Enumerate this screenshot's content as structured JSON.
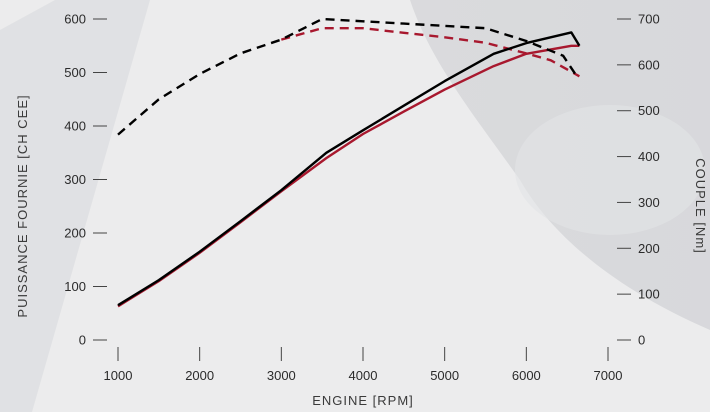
{
  "colors": {
    "background": "#ececed",
    "accent": "#a8182e",
    "primary": "#000000",
    "axis": "#444444",
    "text": "#2b2b2b"
  },
  "chart_data": {
    "type": "line",
    "title": "",
    "xlabel": "ENGINE [RPM]",
    "ylabel_left": "PUISSANCE FOURNIE [CH CEE]",
    "ylabel_right": "COUPLE [Nm]",
    "xlim": [
      1000,
      7000
    ],
    "ylim_left": [
      0,
      600
    ],
    "ylim_right": [
      0,
      700
    ],
    "x_ticks": [
      "1000",
      "2000",
      "3000",
      "4000",
      "5000",
      "6000",
      "7000"
    ],
    "y_left_ticks": [
      "0",
      "100",
      "200",
      "300",
      "400",
      "500",
      "600"
    ],
    "y_right_ticks": [
      "0",
      "100",
      "200",
      "300",
      "400",
      "500",
      "600",
      "700"
    ],
    "grid": false,
    "legend": "none",
    "series": [
      {
        "axis": "left",
        "style": "solid",
        "color": "#000000",
        "x": [
          1000,
          1500,
          2000,
          2500,
          3000,
          3550,
          4000,
          4500,
          5000,
          5600,
          6000,
          6550,
          6650
        ],
        "y": [
          65,
          112,
          165,
          222,
          280,
          350,
          392,
          438,
          484,
          535,
          555,
          575,
          550
        ]
      },
      {
        "axis": "left",
        "style": "solid",
        "color": "#a8182e",
        "x": [
          1000,
          1500,
          2000,
          2500,
          3000,
          3550,
          4000,
          4500,
          5000,
          5600,
          6000,
          6550,
          6650
        ],
        "y": [
          63,
          110,
          163,
          220,
          278,
          340,
          385,
          427,
          468,
          512,
          535,
          550,
          550
        ]
      },
      {
        "axis": "right",
        "style": "dashed",
        "color": "#000000",
        "x": [
          1000,
          1500,
          2000,
          2500,
          3000,
          3500,
          4000,
          4500,
          5000,
          5500,
          6000,
          6450,
          6600
        ],
        "y": [
          448,
          525,
          580,
          625,
          655,
          700,
          695,
          690,
          685,
          680,
          652,
          620,
          580
        ]
      },
      {
        "axis": "right",
        "style": "dashed",
        "color": "#a8182e",
        "x": [
          3000,
          3500,
          4000,
          4500,
          5000,
          5500,
          6000,
          6300,
          6650
        ],
        "y": [
          655,
          680,
          680,
          670,
          660,
          648,
          625,
          610,
          575
        ]
      }
    ]
  }
}
